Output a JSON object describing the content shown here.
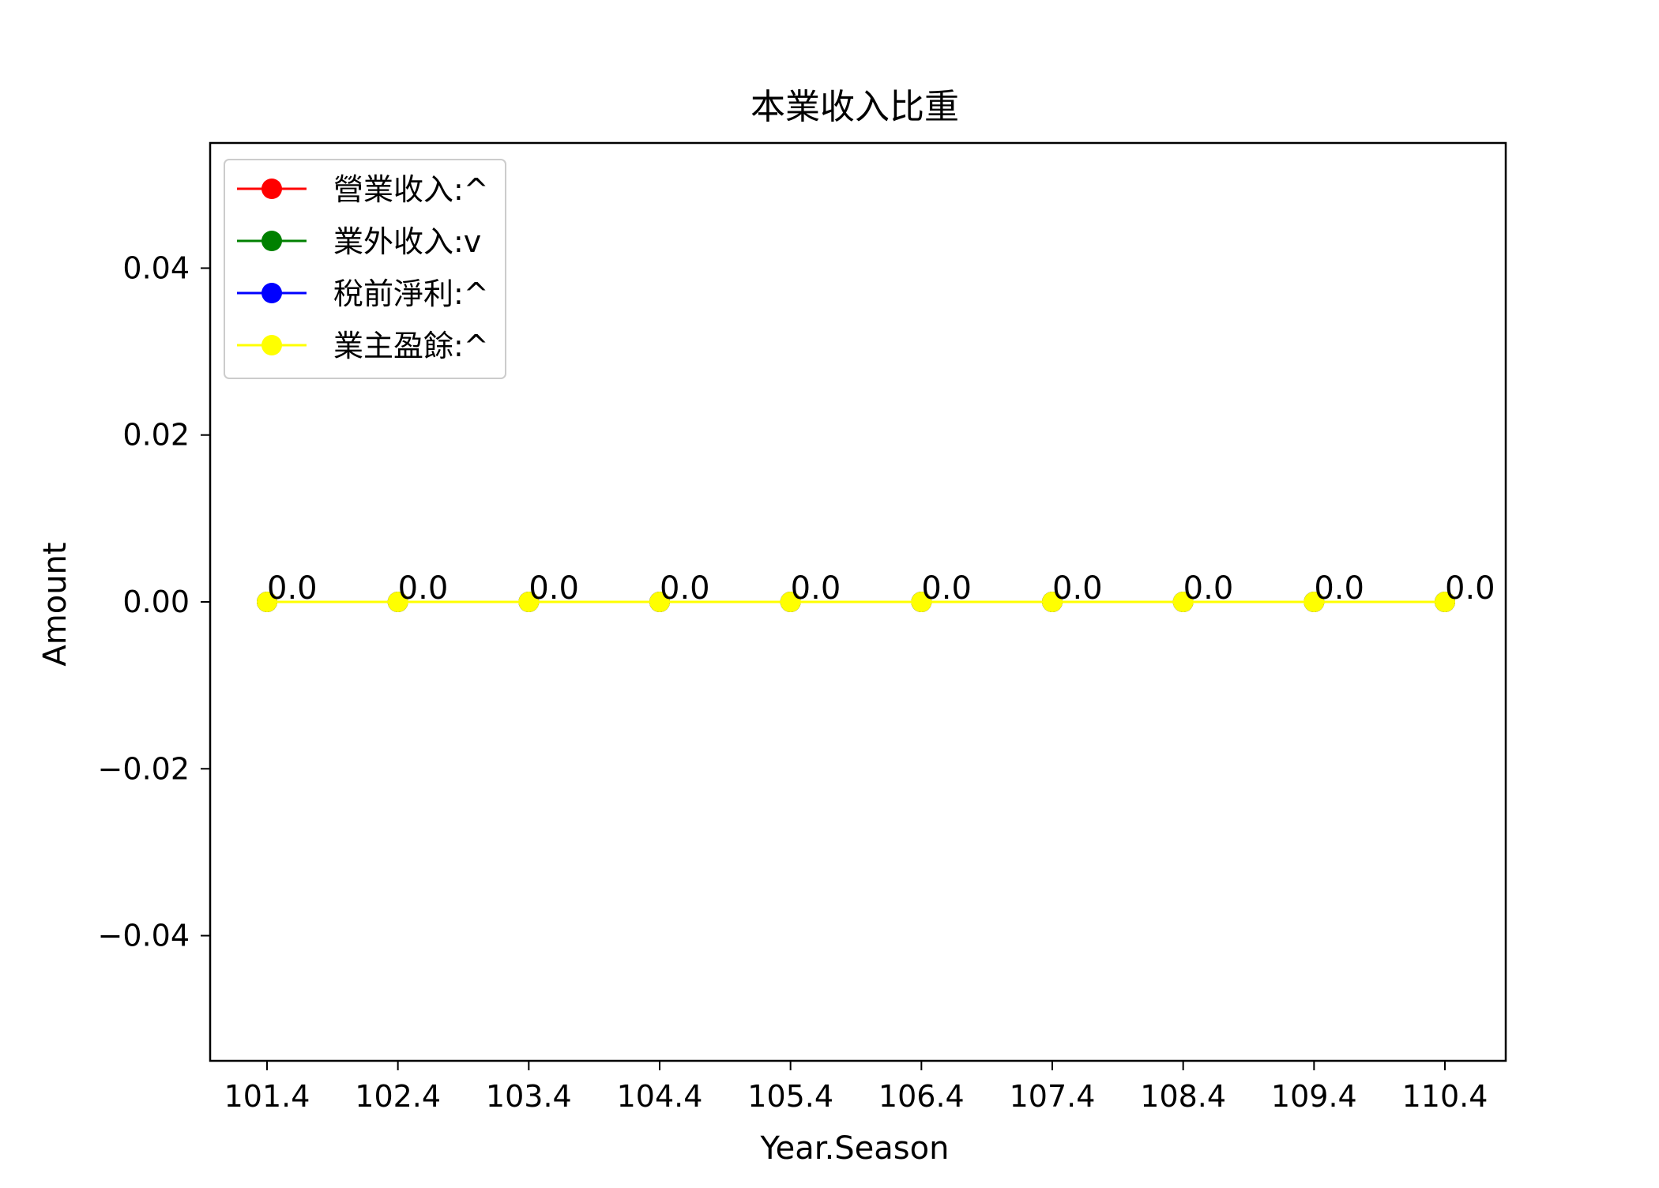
{
  "chart_data": {
    "type": "line",
    "title": "本業收入比重",
    "xlabel": "Year.Season",
    "ylabel": "Amount",
    "categories": [
      "101.4",
      "102.4",
      "103.4",
      "104.4",
      "105.4",
      "106.4",
      "107.4",
      "108.4",
      "109.4",
      "110.4"
    ],
    "ylim": [
      -0.055,
      0.055
    ],
    "yticks": [
      0.04,
      0.02,
      0.0,
      -0.02,
      -0.04
    ],
    "ytick_labels": [
      "0.04",
      "0.02",
      "0.00",
      "−0.02",
      "−0.04"
    ],
    "grid": false,
    "legend_position": "upper-left",
    "series": [
      {
        "name": "營業收入:^",
        "color": "#ff0000",
        "values": [
          0,
          0,
          0,
          0,
          0,
          0,
          0,
          0,
          0,
          0
        ]
      },
      {
        "name": "業外收入:v",
        "color": "#008000",
        "values": [
          0,
          0,
          0,
          0,
          0,
          0,
          0,
          0,
          0,
          0
        ]
      },
      {
        "name": "稅前淨利:^",
        "color": "#0000ff",
        "values": [
          0,
          0,
          0,
          0,
          0,
          0,
          0,
          0,
          0,
          0
        ]
      },
      {
        "name": "業主盈餘:^",
        "color": "#ffff00",
        "values": [
          0,
          0,
          0,
          0,
          0,
          0,
          0,
          0,
          0,
          0
        ]
      }
    ],
    "data_labels": [
      "0.0",
      "0.0",
      "0.0",
      "0.0",
      "0.0",
      "0.0",
      "0.0",
      "0.0",
      "0.0",
      "0.0"
    ]
  }
}
